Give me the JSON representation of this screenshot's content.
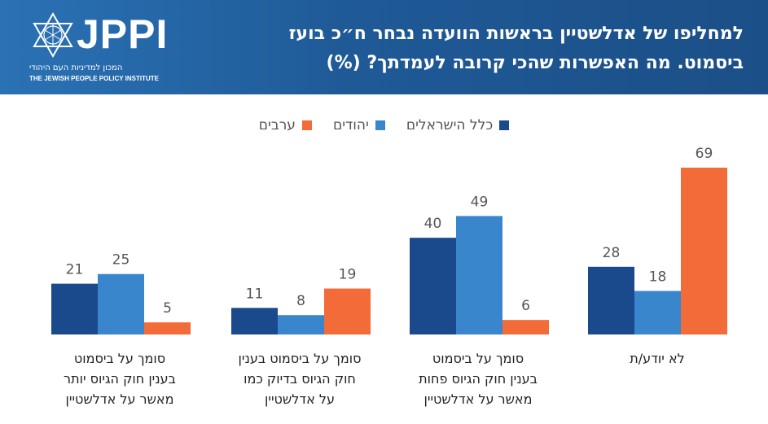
{
  "header": {
    "logo_text": "JPPI",
    "logo_subtitle_he": "המכון למדיניות העם היהודי",
    "logo_subtitle_en": "THE JEWISH PEOPLE POLICY INSTITUTE",
    "title_lines": [
      "למחליפו של אדלשטיין בראשות הוועדה נבחר ח״כ בועז",
      "ביסמוט. מה האפשרות שהכי קרובה לעמדתך? (%)"
    ]
  },
  "colors": {
    "all_israelis": "#1b4a8c",
    "jews": "#3a86cc",
    "arabs": "#f26b38",
    "header_bg": "#1f5a97"
  },
  "chart_data": {
    "type": "bar",
    "title": "למחליפו של אדלשטיין בראשות הוועדה נבחר ח״כ בועז ביסמוט. מה האפשרות שהכי קרובה לעמדתך? (%)",
    "categories": [
      [
        "סומך על ביסמוט",
        "בענין חוק הגיוס יותר",
        "מאשר על אדלשטיין"
      ],
      [
        "סומך על ביסמוט בענין",
        "חוק הגיוס בדיוק כמו",
        "על אדלשטיין"
      ],
      [
        "סומך על ביסמוט",
        "בענין חוק הגיוס פחות",
        "מאשר על אדלשטיין"
      ],
      [
        "לא יודע/ת"
      ]
    ],
    "series": [
      {
        "name": "כלל הישראלים",
        "color": "#1b4a8c",
        "values": [
          21,
          11,
          40,
          28
        ]
      },
      {
        "name": "יהודים",
        "color": "#3a86cc",
        "values": [
          25,
          8,
          49,
          18
        ]
      },
      {
        "name": "ערבים",
        "color": "#f26b38",
        "values": [
          5,
          19,
          6,
          69
        ]
      }
    ],
    "ylim": [
      0,
      69
    ],
    "xlabel": "",
    "ylabel": "",
    "legend_position": "top-center",
    "grid": false,
    "data_labels": true
  }
}
